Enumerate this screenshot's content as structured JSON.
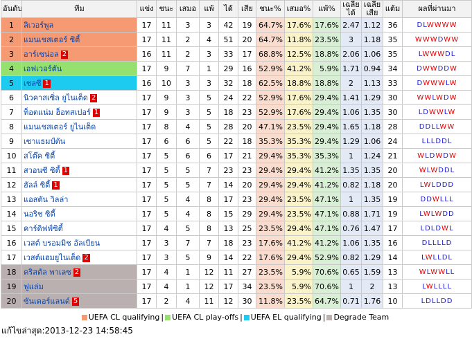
{
  "headers": {
    "rank": "อันดับ",
    "team": "ทีม",
    "played": "แข่ง",
    "won": "ชนะ",
    "drawn": "เสมอ",
    "lost": "แพ้",
    "gf": "ได้",
    "ga": "เสีย",
    "winpct": "ชนะ%",
    "drawpct": "เสมอ%",
    "losspct": "แพ้%",
    "avgf": "เฉลี่ยได้",
    "avga": "เฉลี่ยเสีย",
    "pts": "แต้ม",
    "form": "ผลที่ผ่านมา"
  },
  "rows": [
    {
      "rank": "1",
      "team": "ลิเวอร์พูล",
      "card": "",
      "p": "17",
      "w": "11",
      "d": "3",
      "l": "3",
      "gf": "42",
      "ga": "19",
      "winpct": "64.7%",
      "drawpct": "17.6%",
      "losspct": "17.6%",
      "avgf": "2.47",
      "avga": "1.12",
      "pts": "36",
      "form": "DLWWWW",
      "zone": "cl"
    },
    {
      "rank": "2",
      "team": "แมนเชสเตอร์ ซิตี้",
      "card": "",
      "p": "17",
      "w": "11",
      "d": "2",
      "l": "4",
      "gf": "51",
      "ga": "20",
      "winpct": "64.7%",
      "drawpct": "11.8%",
      "losspct": "23.5%",
      "avgf": "3",
      "avga": "1.18",
      "pts": "35",
      "form": "WWWDWW",
      "zone": "cl"
    },
    {
      "rank": "3",
      "team": "อาร์เซน่อล",
      "card": "2",
      "p": "16",
      "w": "11",
      "d": "2",
      "l": "3",
      "gf": "33",
      "ga": "17",
      "winpct": "68.8%",
      "drawpct": "12.5%",
      "losspct": "18.8%",
      "avgf": "2.06",
      "avga": "1.06",
      "pts": "35",
      "form": "LWWWDL",
      "zone": "cl"
    },
    {
      "rank": "4",
      "team": "เอฟเวอร์ตัน",
      "card": "",
      "p": "17",
      "w": "9",
      "d": "7",
      "l": "1",
      "gf": "29",
      "ga": "16",
      "winpct": "52.9%",
      "drawpct": "41.2%",
      "losspct": "5.9%",
      "avgf": "1.71",
      "avga": "0.94",
      "pts": "34",
      "form": "DWWDDW",
      "zone": "po"
    },
    {
      "rank": "5",
      "team": "เชลซี",
      "card": "1",
      "p": "16",
      "w": "10",
      "d": "3",
      "l": "3",
      "gf": "32",
      "ga": "18",
      "winpct": "62.5%",
      "drawpct": "18.8%",
      "losspct": "18.8%",
      "avgf": "2",
      "avga": "1.13",
      "pts": "33",
      "form": "DWWWLW",
      "zone": "el"
    },
    {
      "rank": "6",
      "team": "นิวคาสเซิ่ล ยูไนเต็ด",
      "card": "2",
      "p": "17",
      "w": "9",
      "d": "3",
      "l": "5",
      "gf": "24",
      "ga": "22",
      "winpct": "52.9%",
      "drawpct": "17.6%",
      "losspct": "29.4%",
      "avgf": "1.41",
      "avga": "1.29",
      "pts": "30",
      "form": "WWLWDW",
      "zone": ""
    },
    {
      "rank": "7",
      "team": "ท็อตแน่ม ฮ็อทสเปอร์",
      "card": "1",
      "p": "17",
      "w": "9",
      "d": "3",
      "l": "5",
      "gf": "18",
      "ga": "23",
      "winpct": "52.9%",
      "drawpct": "17.6%",
      "losspct": "29.4%",
      "avgf": "1.06",
      "avga": "1.35",
      "pts": "30",
      "form": "LDWWLW",
      "zone": ""
    },
    {
      "rank": "8",
      "team": "แมนเชสเตอร์ ยูไนเต็ด",
      "card": "",
      "p": "17",
      "w": "8",
      "d": "4",
      "l": "5",
      "gf": "28",
      "ga": "20",
      "winpct": "47.1%",
      "drawpct": "23.5%",
      "losspct": "29.4%",
      "avgf": "1.65",
      "avga": "1.18",
      "pts": "28",
      "form": "DDLLWW",
      "zone": ""
    },
    {
      "rank": "9",
      "team": "เซาแธมป์ตัน",
      "card": "",
      "p": "17",
      "w": "6",
      "d": "6",
      "l": "5",
      "gf": "22",
      "ga": "18",
      "winpct": "35.3%",
      "drawpct": "35.3%",
      "losspct": "29.4%",
      "avgf": "1.29",
      "avga": "1.06",
      "pts": "24",
      "form": "LLLDDL",
      "zone": ""
    },
    {
      "rank": "10",
      "team": "สโต๊ค ซิตี้",
      "card": "",
      "p": "17",
      "w": "5",
      "d": "6",
      "l": "6",
      "gf": "17",
      "ga": "21",
      "winpct": "29.4%",
      "drawpct": "35.3%",
      "losspct": "35.3%",
      "avgf": "1",
      "avga": "1.24",
      "pts": "21",
      "form": "WLDWDW",
      "zone": ""
    },
    {
      "rank": "11",
      "team": "สวอนซี ซิตี้",
      "card": "1",
      "p": "17",
      "w": "5",
      "d": "5",
      "l": "7",
      "gf": "23",
      "ga": "23",
      "winpct": "29.4%",
      "drawpct": "29.4%",
      "losspct": "41.2%",
      "avgf": "1.35",
      "avga": "1.35",
      "pts": "20",
      "form": "WLWDDL",
      "zone": ""
    },
    {
      "rank": "12",
      "team": "ฮัลล์ ซิตี้",
      "card": "1",
      "p": "17",
      "w": "5",
      "d": "5",
      "l": "7",
      "gf": "14",
      "ga": "20",
      "winpct": "29.4%",
      "drawpct": "29.4%",
      "losspct": "41.2%",
      "avgf": "0.82",
      "avga": "1.18",
      "pts": "20",
      "form": "LWLDDD",
      "zone": ""
    },
    {
      "rank": "13",
      "team": "แอสตัน วิลล่า",
      "card": "",
      "p": "17",
      "w": "5",
      "d": "4",
      "l": "8",
      "gf": "17",
      "ga": "23",
      "winpct": "29.4%",
      "drawpct": "23.5%",
      "losspct": "47.1%",
      "avgf": "1",
      "avga": "1.35",
      "pts": "19",
      "form": "DDWLLL",
      "zone": ""
    },
    {
      "rank": "14",
      "team": "นอริช ซิตี้",
      "card": "",
      "p": "17",
      "w": "5",
      "d": "4",
      "l": "8",
      "gf": "15",
      "ga": "29",
      "winpct": "29.4%",
      "drawpct": "23.5%",
      "losspct": "47.1%",
      "avgf": "0.88",
      "avga": "1.71",
      "pts": "19",
      "form": "LWLWDD",
      "zone": ""
    },
    {
      "rank": "15",
      "team": "คาร์ดิฟฟ์ซิตี้",
      "card": "",
      "p": "17",
      "w": "4",
      "d": "5",
      "l": "8",
      "gf": "13",
      "ga": "25",
      "winpct": "23.5%",
      "drawpct": "29.4%",
      "losspct": "47.1%",
      "avgf": "0.76",
      "avga": "1.47",
      "pts": "17",
      "form": "LDLDWL",
      "zone": ""
    },
    {
      "rank": "16",
      "team": "เวสต์ บรอมมิช อัลเบียน",
      "card": "",
      "p": "17",
      "w": "3",
      "d": "7",
      "l": "7",
      "gf": "18",
      "ga": "23",
      "winpct": "17.6%",
      "drawpct": "41.2%",
      "losspct": "41.2%",
      "avgf": "1.06",
      "avga": "1.35",
      "pts": "16",
      "form": "DLLLLD",
      "zone": ""
    },
    {
      "rank": "17",
      "team": "เวสต์แฮมยูไนเต็ด",
      "card": "2",
      "p": "17",
      "w": "3",
      "d": "5",
      "l": "9",
      "gf": "14",
      "ga": "22",
      "winpct": "17.6%",
      "drawpct": "29.4%",
      "losspct": "52.9%",
      "avgf": "0.82",
      "avga": "1.29",
      "pts": "14",
      "form": "LWLLDL",
      "zone": ""
    },
    {
      "rank": "18",
      "team": "คริสตัล พาเลซ",
      "card": "2",
      "p": "17",
      "w": "4",
      "d": "1",
      "l": "12",
      "gf": "11",
      "ga": "27",
      "winpct": "23.5%",
      "drawpct": "5.9%",
      "losspct": "70.6%",
      "avgf": "0.65",
      "avga": "1.59",
      "pts": "13",
      "form": "WLWWLL",
      "zone": "rel"
    },
    {
      "rank": "19",
      "team": "ฟูแล่ม",
      "card": "",
      "p": "17",
      "w": "4",
      "d": "1",
      "l": "12",
      "gf": "17",
      "ga": "34",
      "winpct": "23.5%",
      "drawpct": "5.9%",
      "losspct": "70.6%",
      "avgf": "1",
      "avga": "2",
      "pts": "13",
      "form": "LWLLLL",
      "zone": "rel"
    },
    {
      "rank": "20",
      "team": "ซันเดอร์แลนด์",
      "card": "5",
      "p": "17",
      "w": "2",
      "d": "4",
      "l": "11",
      "gf": "12",
      "ga": "30",
      "winpct": "11.8%",
      "drawpct": "23.5%",
      "losspct": "64.7%",
      "avgf": "0.71",
      "avga": "1.76",
      "pts": "10",
      "form": "LDLLDD",
      "zone": "rel"
    }
  ],
  "legend": [
    {
      "label": "UEFA CL qualifying",
      "color": "#f59a73"
    },
    {
      "label": "UEFA CL play-offs",
      "color": "#96e06f"
    },
    {
      "label": "UEFA EL qualifying",
      "color": "#1ecbf0"
    },
    {
      "label": "Degrade Team",
      "color": "#bbb0b0"
    }
  ],
  "separator": "|",
  "updated": "แก้ไขล่าสุด:2013-12-23 14:58:45"
}
